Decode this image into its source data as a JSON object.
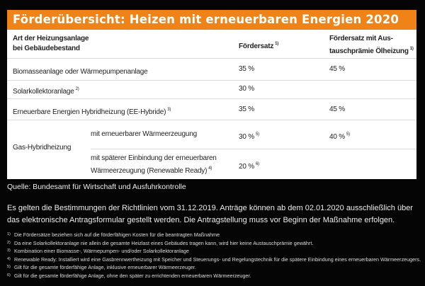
{
  "title": "Förderübersicht: Heizen mit erneuerbaren Energien 2020",
  "colors": {
    "accent": "#ef8318",
    "background": "#050505"
  },
  "table": {
    "headers": {
      "col1_line1": "Art der Heizungsanlage",
      "col1_line2": "bei Gebäudebestand",
      "col2": "Fördersatz",
      "col2_note": "1)",
      "col3_line1": "Fördersatz mit Aus-",
      "col3_line2": "tauschprämie Ölheizung",
      "col3_note": "1)"
    },
    "rows": [
      {
        "label": "Biomasseanlage oder Wärmepumpenanlage",
        "note": "",
        "rate": "35 %",
        "rate_note": "",
        "exchange": "45 %",
        "exchange_note": ""
      },
      {
        "label": "Solarkollektoranlage",
        "note": "2)",
        "rate": "30 %",
        "rate_note": "",
        "exchange": "",
        "exchange_note": ""
      },
      {
        "label": "Erneuerbare Energien  Hybridheizung (EE-Hybride)",
        "note": "3)",
        "rate": "35 %",
        "rate_note": "",
        "exchange": "45 %",
        "exchange_note": ""
      }
    ],
    "gas": {
      "label": "Gas-Hybridheizung",
      "sub": [
        {
          "label_line1": "mit erneuerbarer Wärmeerzeugung",
          "label_line2": "",
          "note": "",
          "rate": "30 %",
          "rate_note": "5)",
          "exchange": "40 %",
          "exchange_note": "5)"
        },
        {
          "label_line1": "mit späterer Einbindung der erneuerbaren",
          "label_line2": "Wärmeerzeugung (Renewable Ready)",
          "note": "4)",
          "rate": "20 %",
          "rate_note": "6)",
          "exchange": "",
          "exchange_note": ""
        }
      ]
    }
  },
  "source": "Quelle:  Bundesamt für Wirtschaft und Ausfuhrkontrolle",
  "paragraph": "Es gelten die Bestimmungen der Richtlinien vom 31.12.2019. Anträge können ab dem 02.01.2020 ausschließlich über das elektronische Antragsformular gestellt werden. Die Antragstellung muss vor Beginn der Maßnahme erfolgen.",
  "footnotes": [
    {
      "n": "1)",
      "text": "Die Fördersätze beziehen sich auf die förderfähigen Kosten für die beantragten Maßnahme"
    },
    {
      "n": "2)",
      "text": "Da eine Solarkollektoranlage nie allein die gesamte Heizlast eines Gebäudes tragen kann, wird hier keine Austauschprämie gewährt."
    },
    {
      "n": "3)",
      "text": "Kombination einer Biomasse-, Wärmepumpen- und/oder Solarkollektoranlage"
    },
    {
      "n": "4)",
      "text": "Renewable Ready: Installiert wird eine Gasbrennwertheizung mit Speicher und Steuerungs- und Regelungstechnik für die spätere Einbindung eines erneuerbaren Wärmeerzeugers."
    },
    {
      "n": "5)",
      "text": "Gilt für die gesamte förderfähige Anlage, inklusive erneuerbarer Wärmeerzeuger."
    },
    {
      "n": "6)",
      "text": "Gilt für die gesamte förderfähige Anlage, ohne den später zu errichtenden erneuerbaren Wärmeerzeuger."
    }
  ]
}
